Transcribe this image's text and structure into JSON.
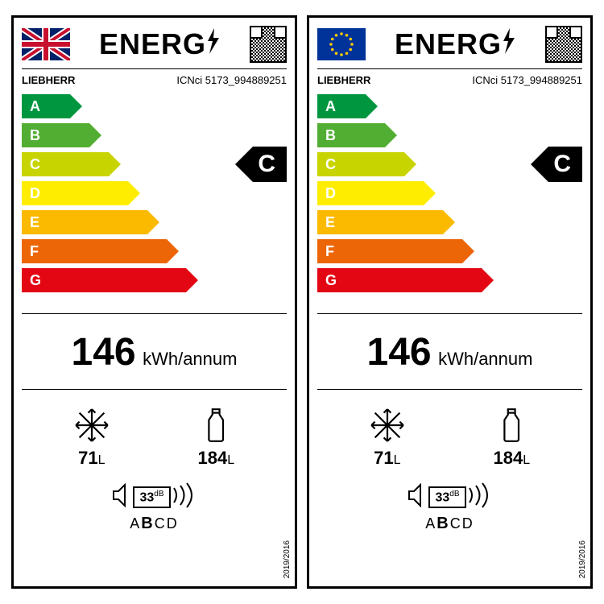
{
  "labels": [
    {
      "flag": "uk",
      "title": "ENERG",
      "brand": "LIEBHERR",
      "model": "ICNci 5173_994889251",
      "rating": "C",
      "rating_index": 2,
      "kwh_value": "146",
      "kwh_unit": "kWh/annum",
      "freezer_l": "71",
      "fridge_l": "184",
      "vol_unit": "L",
      "noise_db": "33",
      "noise_unit": "dB",
      "noise_scale_pre": "A",
      "noise_scale_sel": "B",
      "noise_scale_post": "CD",
      "regulation": "2019/2016"
    },
    {
      "flag": "eu",
      "title": "ENERG",
      "brand": "LIEBHERR",
      "model": "ICNci 5173_994889251",
      "rating": "C",
      "rating_index": 2,
      "kwh_value": "146",
      "kwh_unit": "kWh/annum",
      "freezer_l": "71",
      "fridge_l": "184",
      "vol_unit": "L",
      "noise_db": "33",
      "noise_unit": "dB",
      "noise_scale_pre": "A",
      "noise_scale_sel": "B",
      "noise_scale_post": "CD",
      "regulation": "2019/2016"
    }
  ],
  "scale": {
    "letters": [
      "A",
      "B",
      "C",
      "D",
      "E",
      "F",
      "G"
    ],
    "colors": [
      "#009640",
      "#52ae32",
      "#c8d400",
      "#ffed00",
      "#fbba00",
      "#ec6608",
      "#e30613"
    ],
    "start_width": 60,
    "step_width": 24,
    "row_gap": 36,
    "arrow_height": 30
  },
  "flags": {
    "uk": {
      "bg": "#012169"
    },
    "eu": {
      "bg": "#003399",
      "star": "#ffcc00"
    }
  }
}
